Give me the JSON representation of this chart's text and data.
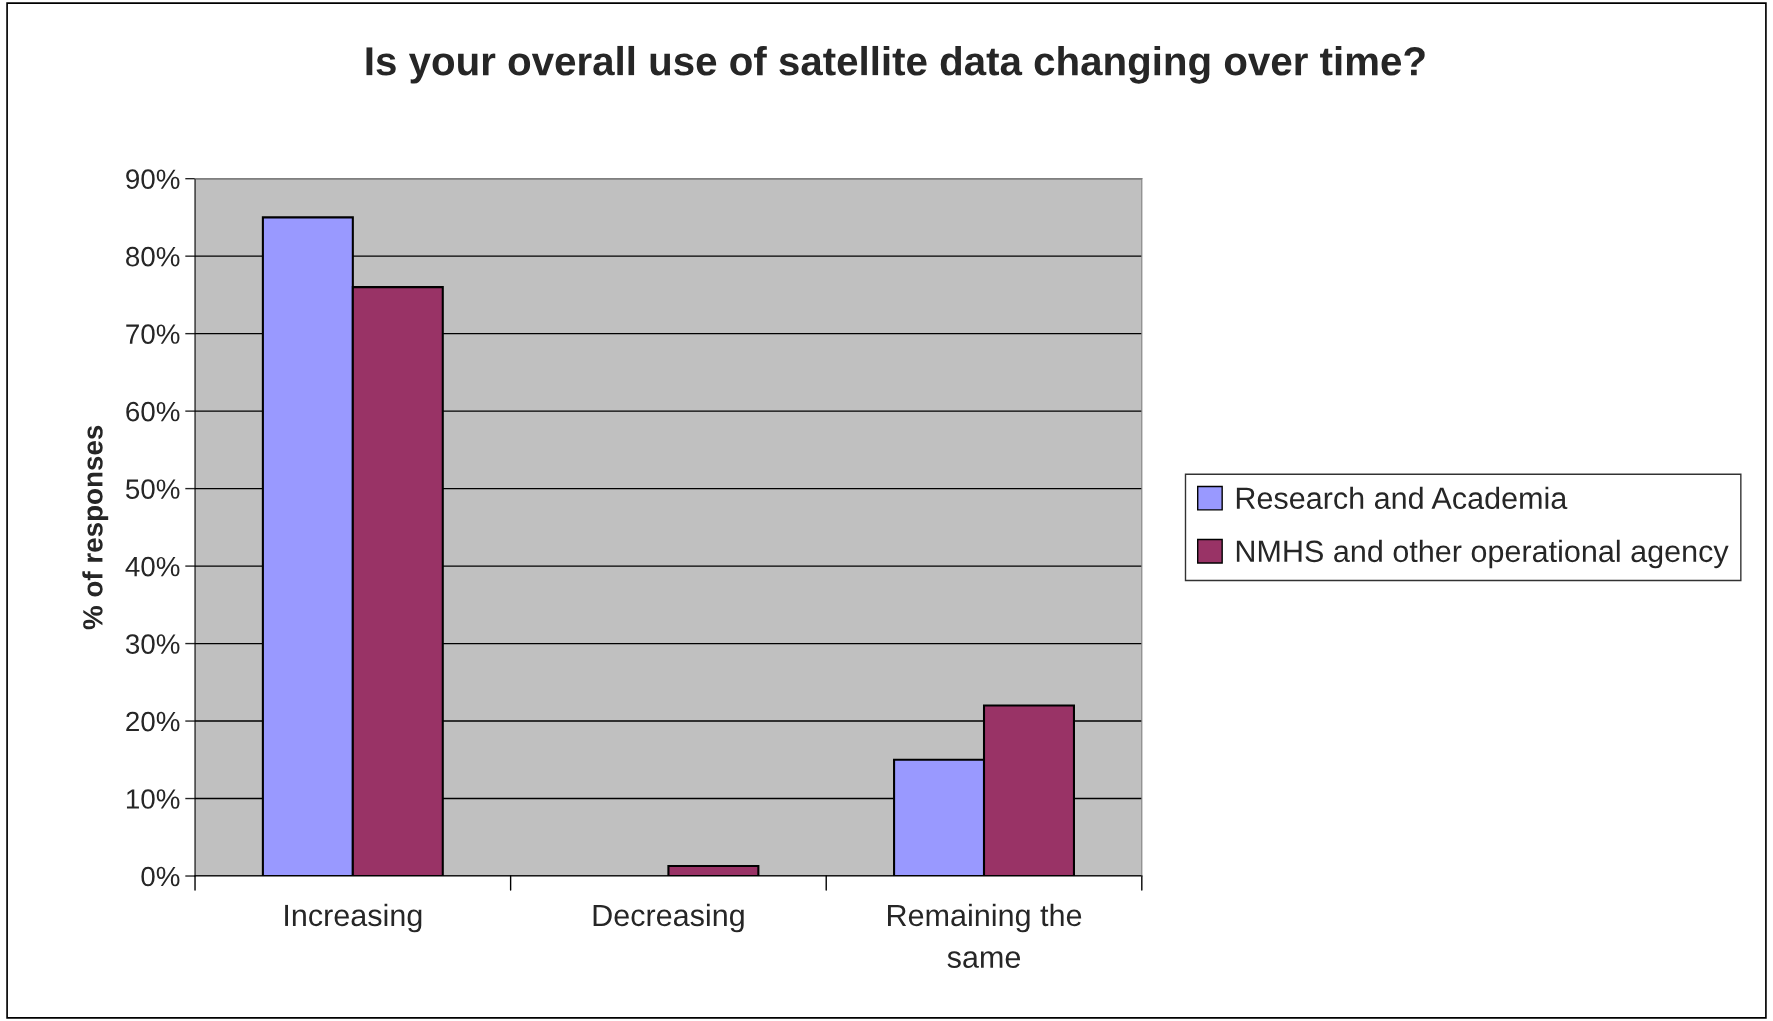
{
  "chart_data": {
    "type": "bar",
    "title": "Is your overall use of satellite data changing over time?",
    "ylabel": "% of responses",
    "categories": [
      "Increasing",
      "Decreasing",
      "Remaining the\nsame"
    ],
    "series": [
      {
        "name": "Research and Academia",
        "color": "#9999ff",
        "values": [
          85,
          0,
          15
        ]
      },
      {
        "name": "NMHS and other operational agency",
        "color": "#993366",
        "values": [
          76,
          1.3,
          22
        ]
      }
    ],
    "ylim": [
      0,
      90
    ],
    "yticks": [
      {
        "value": 0,
        "label": "0%"
      },
      {
        "value": 10,
        "label": "10%"
      },
      {
        "value": 20,
        "label": "20%"
      },
      {
        "value": 30,
        "label": "30%"
      },
      {
        "value": 40,
        "label": "40%"
      },
      {
        "value": 50,
        "label": "50%"
      },
      {
        "value": 60,
        "label": "60%"
      },
      {
        "value": 70,
        "label": "70%"
      },
      {
        "value": 80,
        "label": "80%"
      },
      {
        "value": 90,
        "label": "90%"
      }
    ],
    "grid": "y",
    "legend": "right"
  }
}
